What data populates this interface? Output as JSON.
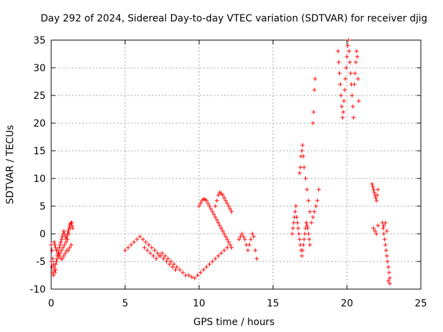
{
  "chart_data": {
    "type": "scatter",
    "title": "Day 292 of 2024, Sidereal Day-to-day VTEC variation (SDTVAR) for receiver djig",
    "xlabel": "GPS time / hours",
    "ylabel": "SDTVAR / TECUs",
    "xlim": [
      0,
      25
    ],
    "ylim": [
      -10,
      35
    ],
    "x_ticks": [
      0,
      5,
      10,
      15,
      20,
      25
    ],
    "y_ticks": [
      -10,
      -5,
      0,
      5,
      10,
      15,
      20,
      25,
      30,
      35
    ],
    "x_tick_labels": [
      "0",
      "5",
      "10",
      "15",
      "20",
      "25"
    ],
    "y_tick_labels": [
      "-10",
      "-5",
      "0",
      "5",
      "10",
      "15",
      "20",
      "25",
      "30",
      "35"
    ],
    "grid": true,
    "legend": "none",
    "marker": "+",
    "series": [
      {
        "name": "SDTVAR",
        "color": "#ff0000",
        "x": [
          0.0,
          0.05,
          0.1,
          0.15,
          0.2,
          0.25,
          0.3,
          0.35,
          0.4,
          0.45,
          0.5,
          0.55,
          0.6,
          0.65,
          0.7,
          0.75,
          0.8,
          0.85,
          0.9,
          0.95,
          1.0,
          1.05,
          1.1,
          1.15,
          1.2,
          1.25,
          1.3,
          1.35,
          1.4,
          1.45,
          0.0,
          0.05,
          0.1,
          0.15,
          0.2,
          0.3,
          0.4,
          0.5,
          0.6,
          0.7,
          0.8,
          0.9,
          1.0,
          1.1,
          1.2,
          1.3,
          1.4,
          0.2,
          0.25,
          0.3,
          0.35,
          0.45,
          0.55,
          0.65,
          0.75,
          0.85,
          0.95,
          1.05,
          1.15,
          1.25,
          1.35,
          5.0,
          5.2,
          5.4,
          5.6,
          5.8,
          6.0,
          6.2,
          6.4,
          6.6,
          6.8,
          7.0,
          7.2,
          7.4,
          7.6,
          7.8,
          8.0,
          8.2,
          8.4,
          6.3,
          6.5,
          6.7,
          6.9,
          7.1,
          7.3,
          7.5,
          7.7,
          7.9,
          8.1,
          8.3,
          8.5,
          8.7,
          8.9,
          9.1,
          9.3,
          9.5,
          9.7,
          9.9,
          10.1,
          10.3,
          10.5,
          10.7,
          10.9,
          11.1,
          11.3,
          11.5,
          11.7,
          11.9,
          10.0,
          10.1,
          10.2,
          10.3,
          10.4,
          10.5,
          10.6,
          10.7,
          10.8,
          10.9,
          11.0,
          11.1,
          11.2,
          11.3,
          11.4,
          11.5,
          11.6,
          11.7,
          11.8,
          11.9,
          12.0,
          12.1,
          12.2,
          11.1,
          11.2,
          11.3,
          11.4,
          11.5,
          11.6,
          11.7,
          11.8,
          11.9,
          12.0,
          12.1,
          12.2,
          12.7,
          12.8,
          12.9,
          13.0,
          13.1,
          13.2,
          13.3,
          13.4,
          13.5,
          13.6,
          13.7,
          13.8,
          13.9,
          16.3,
          16.35,
          16.4,
          16.45,
          16.5,
          16.55,
          16.6,
          16.65,
          16.7,
          16.75,
          16.8,
          16.85,
          16.9,
          16.95,
          17.0,
          17.05,
          17.1,
          17.15,
          17.2,
          17.25,
          17.3,
          17.35,
          17.4,
          17.45,
          17.5,
          17.6,
          17.7,
          17.8,
          17.9,
          18.0,
          18.1,
          16.8,
          16.85,
          16.9,
          16.95,
          17.0,
          17.05,
          17.1,
          17.2,
          17.3,
          17.4,
          17.5,
          17.7,
          17.75,
          17.8,
          17.85,
          19.4,
          19.45,
          19.5,
          19.55,
          19.6,
          19.65,
          19.7,
          19.75,
          19.8,
          19.85,
          19.9,
          19.95,
          20.0,
          20.05,
          20.1,
          20.15,
          20.2,
          20.25,
          20.3,
          20.35,
          20.4,
          20.45,
          20.5,
          20.55,
          20.6,
          20.65,
          20.7,
          20.75,
          20.8,
          21.7,
          21.75,
          21.8,
          21.85,
          21.9,
          21.95,
          22.0,
          22.05,
          22.1,
          21.8,
          21.9,
          22.0,
          22.1,
          22.4,
          22.45,
          22.5,
          22.55,
          22.6,
          22.65,
          22.7,
          22.75,
          22.8,
          22.85,
          22.9,
          22.5,
          22.6,
          22.7,
          22.8,
          22.9
        ],
        "y": [
          -2,
          -3,
          -4.5,
          -5.5,
          -6,
          -7,
          -6.5,
          -5,
          -4,
          -3,
          -3.5,
          -2.5,
          -2,
          -1.5,
          -1,
          -0.5,
          0,
          0.5,
          0,
          -0.5,
          -1,
          -0.5,
          0,
          0.5,
          1,
          1.5,
          1.8,
          2,
          1.5,
          1,
          -5,
          -6,
          -7,
          -7.5,
          -6.5,
          -5.5,
          -4.5,
          -4,
          -3.5,
          -3,
          -2.5,
          -2,
          -1.5,
          -1,
          0,
          1,
          2,
          -1.5,
          -2,
          -2.5,
          -3,
          -3.5,
          -4,
          -4.5,
          -4.5,
          -4,
          -3.5,
          -3,
          -3,
          -2.5,
          -2,
          -3,
          -2.5,
          -2,
          -1.5,
          -1,
          -0.5,
          -1,
          -1.5,
          -2,
          -2.5,
          -3,
          -3.5,
          -4,
          -4.5,
          -5,
          -5.5,
          -6,
          -6.5,
          -2.5,
          -3,
          -3.5,
          -4,
          -4.5,
          -4,
          -3.5,
          -4,
          -4.5,
          -5,
          -5.5,
          -6,
          -6.5,
          -7,
          -7.5,
          -7.5,
          -7.8,
          -8,
          -7.5,
          -7,
          -6.5,
          -6,
          -5.5,
          -5,
          -4.5,
          -4,
          -3.5,
          -3,
          -2.5,
          5,
          5.5,
          6,
          6.3,
          6.2,
          6,
          5.5,
          5,
          4.5,
          4,
          3.5,
          3,
          2.5,
          2,
          1.5,
          1,
          0.5,
          0,
          -0.5,
          -1,
          -1.5,
          -2,
          -2.5,
          5,
          6,
          7,
          7.5,
          7.3,
          7,
          6.5,
          6,
          5.5,
          5,
          4.5,
          4,
          -1,
          -0.5,
          0,
          -0.5,
          -1,
          -2,
          -3,
          -2,
          -1,
          0,
          -0.5,
          -3,
          -4.5,
          0,
          1,
          2,
          3,
          4,
          5,
          3,
          2,
          1,
          0,
          -1,
          -2,
          -3,
          -4,
          -3,
          -2,
          -1,
          0,
          1,
          2,
          1.5,
          1,
          0,
          -1,
          -2,
          2,
          3,
          4,
          5,
          6,
          8,
          11,
          12,
          14,
          15,
          16,
          14,
          12,
          10,
          8,
          6,
          4,
          20,
          22,
          26,
          28,
          33,
          31,
          29,
          27,
          25,
          23,
          21,
          22,
          24,
          26,
          28,
          30,
          32,
          34,
          35,
          33,
          31,
          29,
          27,
          25,
          23,
          21,
          27,
          29,
          31,
          33,
          32,
          28,
          24,
          9,
          8.5,
          8,
          7.5,
          7,
          6.5,
          6,
          7,
          8,
          1,
          0.5,
          0,
          1.5,
          2,
          1,
          0,
          -1,
          -2,
          -3,
          -4,
          -5,
          -6,
          -7,
          -8,
          1.5,
          2,
          0.5,
          -8.5,
          -9
        ]
      }
    ]
  }
}
